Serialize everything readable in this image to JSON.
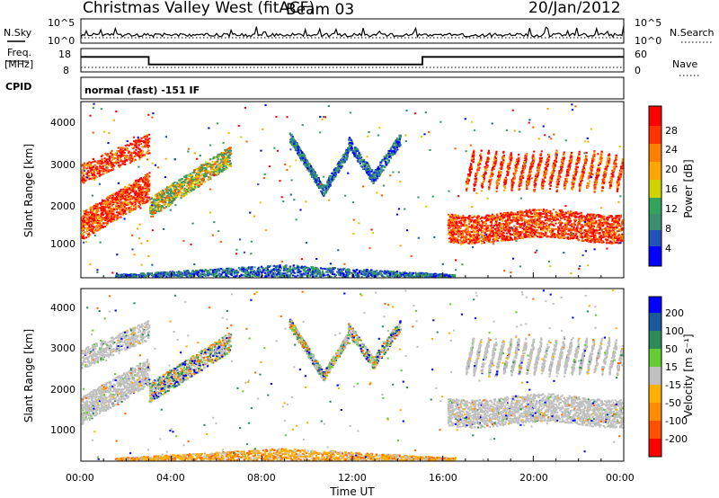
{
  "header": {
    "station": "Christmas Valley West (fitACF)",
    "beam": "Beam 03",
    "date": "20/Jan/2012"
  },
  "left_labels": {
    "nsky": "N.Sky",
    "freq_top": "Freq.",
    "freq_unit": "[MHz]",
    "cpid": "CPID"
  },
  "right_labels": {
    "nsearch": "N.Search",
    "nave": "Nave"
  },
  "cpid_text": "normal (fast) -151 IF",
  "colors": {
    "power_scale": [
      "#0000ff",
      "#2255bb",
      "#3b8f6e",
      "#33a35e",
      "#d2d200",
      "#ffa500",
      "#ff5a00",
      "#ff0000"
    ],
    "velocity_scale": [
      "#ff0000",
      "#ff6a00",
      "#ffb000",
      "#c0c0c0",
      "#c0c0c0",
      "#66cc33",
      "#2e8b57",
      "#1a5a9a",
      "#0000ff"
    ],
    "ground_scatter": "#c0c0c0"
  },
  "chart_data": [
    {
      "type": "line",
      "name": "noise",
      "ylabels": [
        "10^5",
        "10^0"
      ],
      "right_ylabels": [
        "10^5",
        "10^0"
      ],
      "series_labels": [
        "N.Sky",
        "N.Search"
      ]
    },
    {
      "type": "line",
      "name": "frequency-nave",
      "y_ticks": [
        "18",
        "8"
      ],
      "right_y_ticks": [
        "60",
        "0"
      ],
      "series_labels": [
        "Freq.",
        "Nave"
      ],
      "freq_steps": [
        {
          "from_h": 0,
          "to_h": 3.0,
          "value": 15
        },
        {
          "from_h": 3.0,
          "to_h": 15.1,
          "value": 11
        },
        {
          "from_h": 15.1,
          "to_h": 24,
          "value": 15
        }
      ],
      "nave_level": 10
    },
    {
      "type": "heatmap",
      "name": "power",
      "ylabel": "Slant Range [km]",
      "y_ticks": [
        "4000",
        "3000",
        "2000",
        "1000"
      ],
      "ylim": [
        180,
        4500
      ],
      "colorbar_label": "Power [dB]",
      "colorbar_ticks": [
        "28",
        "24",
        "20",
        "16",
        "12",
        "8",
        "4"
      ]
    },
    {
      "type": "heatmap",
      "name": "velocity",
      "ylabel": "Slant Range [km]",
      "y_ticks": [
        "4000",
        "3000",
        "2000",
        "1000"
      ],
      "ylim": [
        180,
        4500
      ],
      "colorbar_label": "Velocity [m s⁻¹]",
      "colorbar_ticks": [
        "200",
        "100",
        "50",
        "15",
        "-15",
        "-50",
        "-100",
        "-200"
      ]
    }
  ],
  "x_axis": {
    "label": "Time UT",
    "ticks": [
      "00:00",
      "04:00",
      "08:00",
      "12:00",
      "16:00",
      "20:00",
      "00:00"
    ],
    "xlim_hours": [
      0,
      24
    ]
  }
}
